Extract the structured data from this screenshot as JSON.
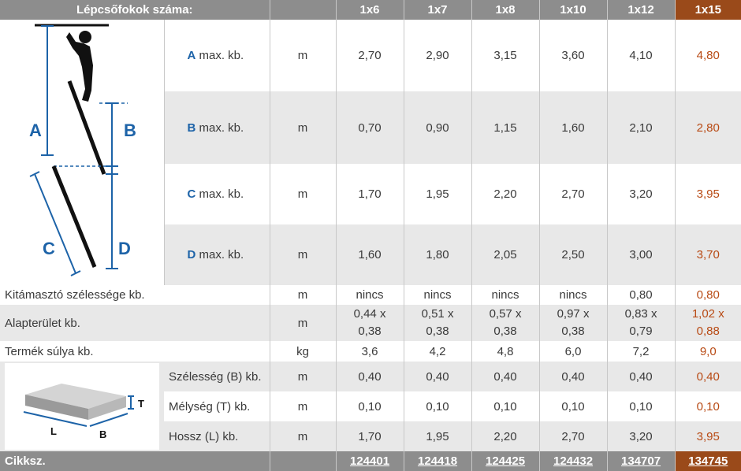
{
  "header": {
    "title": "Lépcsőfokok száma:",
    "models": [
      "1x6",
      "1x7",
      "1x8",
      "1x10",
      "1x12",
      "1x15"
    ]
  },
  "diagram_labels": {
    "a": "A",
    "b": "B",
    "c": "C",
    "d": "D"
  },
  "box_labels": {
    "t": "T",
    "l": "L",
    "b": "B"
  },
  "rows": {
    "a": {
      "letter": "A",
      "text": " max. kb.",
      "unit": "m",
      "values": [
        "2,70",
        "2,90",
        "3,15",
        "3,60",
        "4,10",
        "4,80"
      ]
    },
    "b": {
      "letter": "B",
      "text": " max. kb.",
      "unit": "m",
      "values": [
        "0,70",
        "0,90",
        "1,15",
        "1,60",
        "2,10",
        "2,80"
      ]
    },
    "c": {
      "letter": "C",
      "text": " max. kb.",
      "unit": "m",
      "values": [
        "1,70",
        "1,95",
        "2,20",
        "2,70",
        "3,20",
        "3,95"
      ]
    },
    "d": {
      "letter": "D",
      "text": " max. kb.",
      "unit": "m",
      "values": [
        "1,60",
        "1,80",
        "2,05",
        "2,50",
        "3,00",
        "3,70"
      ]
    },
    "stabilizer": {
      "label": "Kitámasztó szélessége kb.",
      "unit": "m",
      "values": [
        "nincs",
        "nincs",
        "nincs",
        "nincs",
        "0,80",
        "0,80"
      ]
    },
    "footprint": {
      "label": "Alapterület kb.",
      "unit": "m",
      "values": [
        [
          "0,44 x",
          "0,38"
        ],
        [
          "0,51 x",
          "0,38"
        ],
        [
          "0,57 x",
          "0,38"
        ],
        [
          "0,97 x",
          "0,38"
        ],
        [
          "0,83 x",
          "0,79"
        ],
        [
          "1,02 x",
          "0,88"
        ]
      ]
    },
    "weight": {
      "label": "Termék súlya kb.",
      "unit": "kg",
      "values": [
        "3,6",
        "4,2",
        "4,8",
        "6,0",
        "7,2",
        "9,0"
      ]
    },
    "width": {
      "label": "Szélesség (B) kb.",
      "unit": "m",
      "values": [
        "0,40",
        "0,40",
        "0,40",
        "0,40",
        "0,40",
        "0,40"
      ]
    },
    "depth": {
      "label": "Mélység (T) kb.",
      "unit": "m",
      "values": [
        "0,10",
        "0,10",
        "0,10",
        "0,10",
        "0,10",
        "0,10"
      ]
    },
    "length": {
      "label": "Hossz (L) kb.",
      "unit": "m",
      "values": [
        "1,70",
        "1,95",
        "2,20",
        "2,70",
        "3,20",
        "3,95"
      ]
    }
  },
  "footer": {
    "label": "Cikksz.",
    "codes": [
      "124401",
      "124418",
      "124425",
      "124432",
      "134707",
      "134745"
    ]
  },
  "colors": {
    "header_bg": "#8d8d8d",
    "highlight": "#9a4a1a",
    "highlight_text": "#b84a14",
    "letter_blue": "#1d63a8",
    "stripe": "#e8e8e8"
  }
}
